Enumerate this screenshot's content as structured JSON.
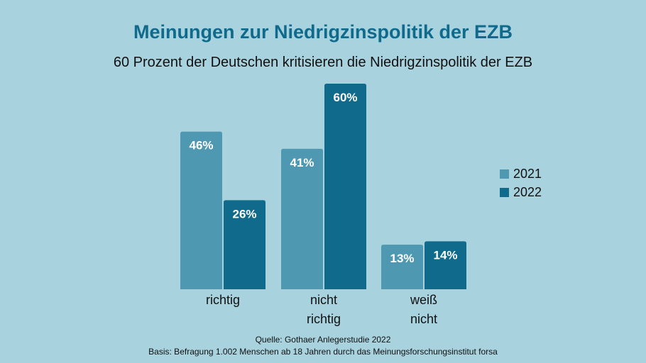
{
  "title": "Meinungen zur Niedrigzinspolitik der EZB",
  "subtitle": "60 Prozent der Deutschen kritisieren die Niedrigzinspolitik der EZB",
  "source": "Quelle: Gothaer Anlegerstudie 2022",
  "basis": "Basis: Befragung 1.002 Menschen ab 18 Jahren durch das Meinungsforschungsinstitut forsa",
  "chart_data": {
    "type": "bar",
    "title": "Meinungen zur Niedrigzinspolitik der EZB",
    "subtitle": "60 Prozent der Deutschen kritisieren die Niedrigzinspolitik der EZB",
    "categories": [
      [
        "richtig"
      ],
      [
        "nicht",
        "richtig"
      ],
      [
        "weiß",
        "nicht"
      ]
    ],
    "series": [
      {
        "name": "2021",
        "values": [
          46,
          41,
          13
        ],
        "labels": [
          "46%",
          "41%",
          "13%"
        ],
        "color": "#4f98b2"
      },
      {
        "name": "2022",
        "values": [
          26,
          60,
          14
        ],
        "labels": [
          "26%",
          "60%",
          "14%"
        ],
        "color": "#0f6a8c"
      }
    ],
    "unit": "%",
    "ylim": [
      0,
      60
    ],
    "grid": false,
    "axes_visible": false,
    "legend_position": "right"
  }
}
